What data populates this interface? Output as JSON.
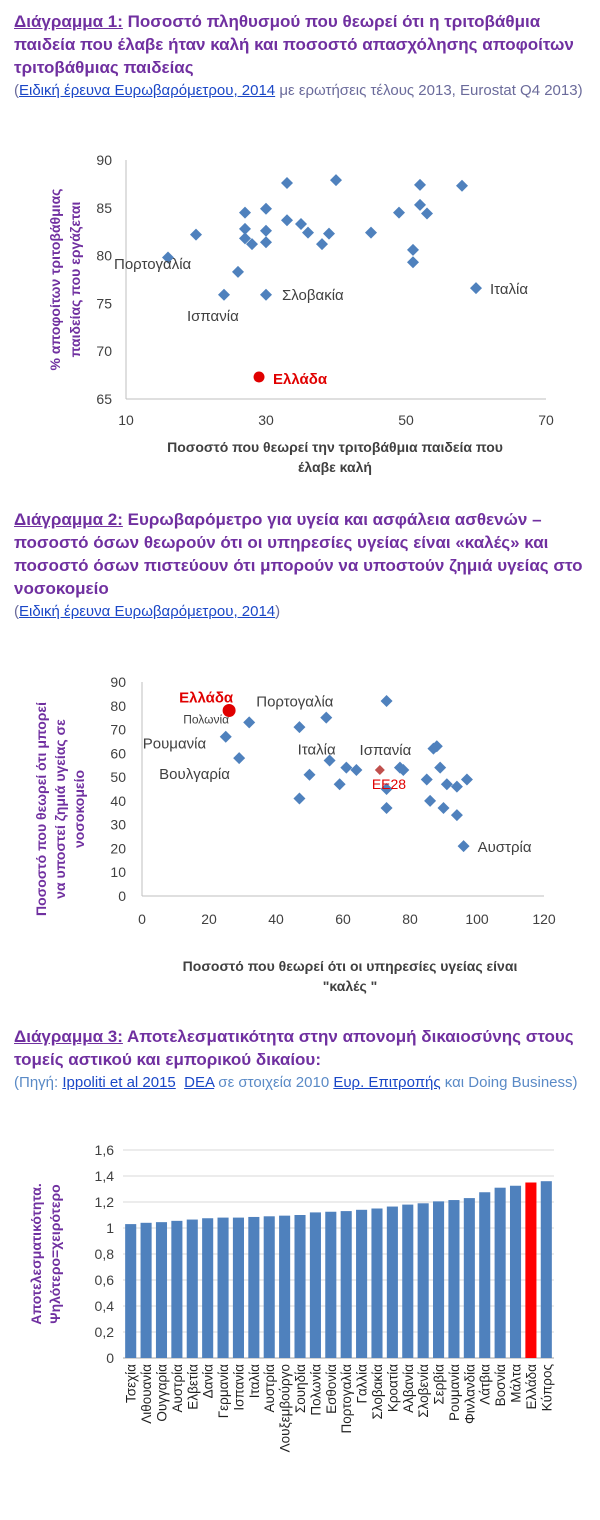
{
  "sections": [
    {
      "title_label": "Διάγραμμα 1:",
      "title_text": "Ποσοστό πληθυσμού που θεωρεί ότι η τριτοβάθμια παιδεία που έλαβε ήταν καλή και ποσοστό απασχόλησης αποφοίτων τριτοβάθμιας παιδείας",
      "source_open": "(",
      "source_link": "Ειδική έρευνα Ευρωβαρόμετρου, 2014",
      "source_rest": " με ερωτήσεις τέλους 2013, Eurostat Q4 2013)"
    },
    {
      "title_label": "Διάγραμμα 2:",
      "title_text": "Ευρωβαρόμετρο για υγεία και ασφάλεια ασθενών –ποσοστό όσων θεωρούν ότι οι υπηρεσίες υγείας είναι «καλές» και ποσοστό όσων πιστεύουν ότι μπορούν να υποστούν ζημιά υγείας στο νοσοκομείο",
      "source_open": "(",
      "source_link": "Ειδική έρευνα Ευρωβαρόμετρου, 2014",
      "source_rest": ")"
    },
    {
      "title_label": "Διάγραμμα 3:",
      "title_text": "Αποτελεσματικότητα στην απονομή δικαιοσύνης στους τομείς αστικού και εμπορικού δικαίου:",
      "source_open": "(Πηγή: ",
      "source_link1": "Ippoliti et al 2015",
      "source_sep1": "  ",
      "source_link2": "DEA",
      "source_mid": " σε στοιχεία 2010 ",
      "source_link3": "Ευρ. Επιτροπής",
      "source_rest": " και Doing Business)"
    }
  ],
  "chart_data": [
    {
      "type": "scatter",
      "xlabel": "Ποσοστό που θεωρεί την τριτοβάθμια παιδεία που έλαβε καλή",
      "ylabel": "% αποφοίτων τριτοβάθμιας παιδείας που εργάζεται",
      "xlim": [
        10,
        70
      ],
      "ylim": [
        65,
        90
      ],
      "xticks": [
        10,
        30,
        50,
        70
      ],
      "yticks": [
        65,
        70,
        75,
        80,
        85,
        90
      ],
      "grid": false,
      "colors": {
        "points": "#4f81bd",
        "highlight": "#e00000",
        "axis": "#7f7f7f"
      },
      "points": [
        {
          "x": 16,
          "y": 79.8,
          "label": ""
        },
        {
          "x": 20,
          "y": 82.2,
          "label": ""
        },
        {
          "x": 24,
          "y": 75.9,
          "label": "Ισπανία"
        },
        {
          "x": 26,
          "y": 78.3,
          "label": "Πορτογαλία"
        },
        {
          "x": 27,
          "y": 84.5,
          "label": ""
        },
        {
          "x": 27,
          "y": 82.8,
          "label": ""
        },
        {
          "x": 27,
          "y": 81.8,
          "label": ""
        },
        {
          "x": 28,
          "y": 81.2,
          "label": ""
        },
        {
          "x": 30,
          "y": 84.9,
          "label": ""
        },
        {
          "x": 30,
          "y": 82.6,
          "label": ""
        },
        {
          "x": 30,
          "y": 81.4,
          "label": ""
        },
        {
          "x": 30,
          "y": 75.9,
          "label": "Σλοβακία"
        },
        {
          "x": 33,
          "y": 87.6,
          "label": ""
        },
        {
          "x": 33,
          "y": 83.7,
          "label": ""
        },
        {
          "x": 35,
          "y": 83.3,
          "label": ""
        },
        {
          "x": 36,
          "y": 82.4,
          "label": ""
        },
        {
          "x": 38,
          "y": 81.2,
          "label": ""
        },
        {
          "x": 39,
          "y": 82.3,
          "label": ""
        },
        {
          "x": 40,
          "y": 87.9,
          "label": ""
        },
        {
          "x": 45,
          "y": 82.4,
          "label": ""
        },
        {
          "x": 49,
          "y": 84.5,
          "label": ""
        },
        {
          "x": 51,
          "y": 80.6,
          "label": ""
        },
        {
          "x": 51,
          "y": 79.3,
          "label": ""
        },
        {
          "x": 52,
          "y": 87.4,
          "label": ""
        },
        {
          "x": 52,
          "y": 85.3,
          "label": ""
        },
        {
          "x": 53,
          "y": 84.4,
          "label": ""
        },
        {
          "x": 58,
          "y": 87.3,
          "label": ""
        },
        {
          "x": 60,
          "y": 76.6,
          "label": "Ιταλία"
        },
        {
          "x": 29,
          "y": 67.3,
          "label": "Ελλάδα",
          "highlight": true
        }
      ]
    },
    {
      "type": "scatter",
      "xlabel": "Ποσοστό που θεωρεί ότι οι υπηρεσίες υγείας είναι \"καλές \"",
      "ylabel": "Ποσοστό που θεωρεί ότι μπορεί να υποστεί ζημιά υγείας σε νοσοκομείο",
      "xlim": [
        0,
        120
      ],
      "ylim": [
        0,
        90
      ],
      "xticks": [
        0,
        20,
        40,
        60,
        80,
        100,
        120
      ],
      "yticks": [
        0,
        10,
        20,
        30,
        40,
        50,
        60,
        70,
        80,
        90
      ],
      "grid": false,
      "colors": {
        "points": "#4f81bd",
        "highlight": "#e00000",
        "eu": "#c0504d",
        "axis": "#7f7f7f"
      },
      "points": [
        {
          "x": 26,
          "y": 78,
          "label": "Ελλάδα",
          "highlight": true
        },
        {
          "x": 32,
          "y": 73,
          "label": "Πολωνία"
        },
        {
          "x": 25,
          "y": 67,
          "label": "Ρουμανία"
        },
        {
          "x": 29,
          "y": 58,
          "label": "Βουλγαρία"
        },
        {
          "x": 47,
          "y": 71,
          "label": ""
        },
        {
          "x": 55,
          "y": 75,
          "label": "Πορτογαλία"
        },
        {
          "x": 56,
          "y": 57,
          "label": "Ιταλία"
        },
        {
          "x": 50,
          "y": 51,
          "label": ""
        },
        {
          "x": 47,
          "y": 41,
          "label": ""
        },
        {
          "x": 59,
          "y": 47,
          "label": ""
        },
        {
          "x": 61,
          "y": 54,
          "label": ""
        },
        {
          "x": 64,
          "y": 53,
          "label": ""
        },
        {
          "x": 71,
          "y": 53,
          "label": "EE28",
          "eu": true
        },
        {
          "x": 73,
          "y": 82,
          "label": ""
        },
        {
          "x": 73,
          "y": 45,
          "label": "Ισπανία"
        },
        {
          "x": 73,
          "y": 37,
          "label": ""
        },
        {
          "x": 77,
          "y": 54,
          "label": ""
        },
        {
          "x": 78,
          "y": 53,
          "label": ""
        },
        {
          "x": 85,
          "y": 49,
          "label": ""
        },
        {
          "x": 86,
          "y": 40,
          "label": ""
        },
        {
          "x": 87,
          "y": 62,
          "label": ""
        },
        {
          "x": 88,
          "y": 63,
          "label": ""
        },
        {
          "x": 89,
          "y": 54,
          "label": ""
        },
        {
          "x": 90,
          "y": 37,
          "label": ""
        },
        {
          "x": 91,
          "y": 47,
          "label": ""
        },
        {
          "x": 94,
          "y": 46,
          "label": ""
        },
        {
          "x": 94,
          "y": 34,
          "label": ""
        },
        {
          "x": 97,
          "y": 49,
          "label": ""
        },
        {
          "x": 96,
          "y": 21,
          "label": "Αυστρία"
        }
      ]
    },
    {
      "type": "bar",
      "ylabel": "Αποτελεσματικότητα. Ψηλότερο=χειρότερο",
      "ylim": [
        0,
        1.6
      ],
      "yticks": [
        "0",
        "0,2",
        "0,4",
        "0,6",
        "0,8",
        "1",
        "1,2",
        "1,4",
        "1,6"
      ],
      "grid": true,
      "colors": {
        "bar": "#4f81bd",
        "highlight": "#ff0000",
        "grid": "#d9d9d9"
      },
      "highlight_category": "Ελλάδα",
      "categories": [
        "Τσεχία",
        "Λιθουανία",
        "Ουγγαρία",
        "Αυστρία",
        "Ελβετία",
        "Δανία",
        "Γερμανία",
        "Ισπανία",
        "Ιταλία",
        "Αυστρία",
        "Λουξεμβούργο",
        "Σουηδία",
        "Πολωνία",
        "Εσθονία",
        "Πορτογαλία",
        "Γαλλία",
        "Σλοβακία",
        "Κροατία",
        "Αλβανία",
        "Σλοβενία",
        "Σερβία",
        "Ρουμανία",
        "Φινλανδία",
        "Λάτβια",
        "Βοσνία",
        "Μάλτα",
        "Ελλάδα",
        "Κύπρος"
      ],
      "values": [
        1.03,
        1.04,
        1.045,
        1.055,
        1.065,
        1.075,
        1.08,
        1.08,
        1.085,
        1.09,
        1.095,
        1.1,
        1.12,
        1.125,
        1.13,
        1.14,
        1.15,
        1.165,
        1.18,
        1.19,
        1.205,
        1.215,
        1.23,
        1.275,
        1.31,
        1.325,
        1.35,
        1.36
      ]
    }
  ]
}
